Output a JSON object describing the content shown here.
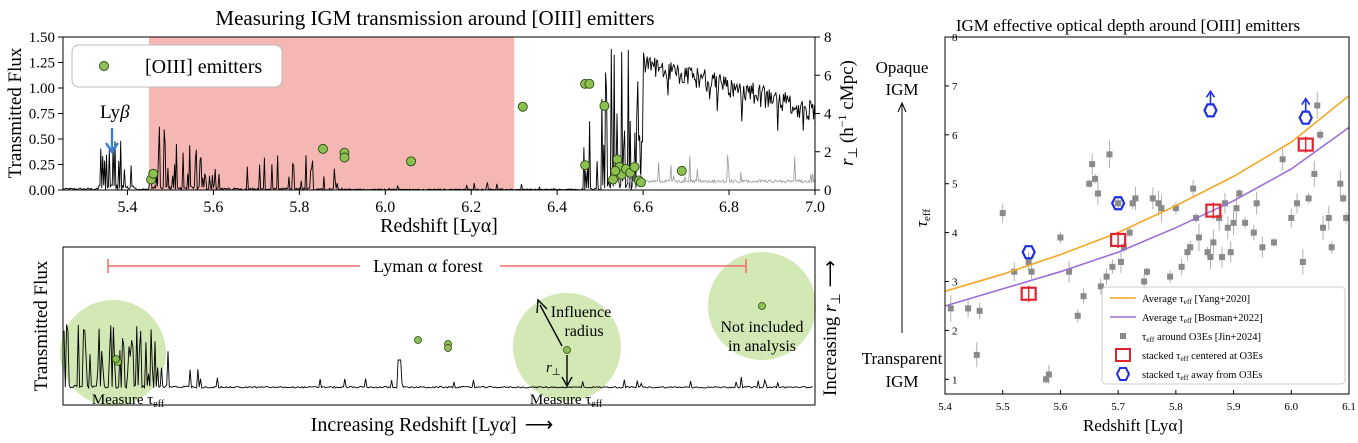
{
  "chart_data": [
    {
      "type": "line",
      "title": "Measuring IGM transmission around [OIII] emitters",
      "xlabel": "Redshift [Lyα]",
      "ylabel": "Transmitted Flux",
      "ylabel_right": "r_⊥ (h⁻¹ cMpc)",
      "ylabel_right_base": "r",
      "ylabel_right_sub": "⊥",
      "ylabel_right_unit_pre": "(h",
      "ylabel_right_unit_exp": "−1",
      "ylabel_right_unit_post": " cMpc)",
      "xlim": [
        5.25,
        7.0
      ],
      "ylim": [
        0,
        1.5
      ],
      "ylim_right": [
        0,
        8
      ],
      "xticks": [
        "5.4",
        "5.6",
        "5.8",
        "6.0",
        "6.2",
        "6.4",
        "6.6",
        "6.8",
        "7.0"
      ],
      "yticks": [
        "0.00",
        "0.25",
        "0.50",
        "0.75",
        "1.00",
        "1.25",
        "1.50"
      ],
      "yticks_right": [
        "0",
        "2",
        "4",
        "6",
        "8"
      ],
      "shaded_region": [
        5.45,
        6.3
      ],
      "shaded_color": "#f4b7b3",
      "legend": "[OIII] emitters",
      "legend_position": "upper-left",
      "lyb_label": "Lyβ",
      "lyb_label_base": "Ly",
      "lyb_label_greek": "β",
      "lyb_redshift": 5.36,
      "lyb_color": "#3a7fd0",
      "emitter_color": "#8cc152",
      "emitters": [
        {
          "x": 5.455,
          "r": 0.55
        },
        {
          "x": 5.46,
          "r": 0.85
        },
        {
          "x": 5.855,
          "r": 2.15
        },
        {
          "x": 5.905,
          "r": 1.95
        },
        {
          "x": 5.905,
          "r": 1.7
        },
        {
          "x": 6.06,
          "r": 1.5
        },
        {
          "x": 6.32,
          "r": 4.35
        },
        {
          "x": 6.465,
          "r": 5.55
        },
        {
          "x": 6.475,
          "r": 5.55
        },
        {
          "x": 6.465,
          "r": 1.3
        },
        {
          "x": 6.51,
          "r": 4.4
        },
        {
          "x": 6.53,
          "r": 0.55
        },
        {
          "x": 6.54,
          "r": 1.6
        },
        {
          "x": 6.545,
          "r": 1.2
        },
        {
          "x": 6.55,
          "r": 0.8
        },
        {
          "x": 6.535,
          "r": 1.0
        },
        {
          "x": 6.56,
          "r": 1.1
        },
        {
          "x": 6.57,
          "r": 0.9
        },
        {
          "x": 6.58,
          "r": 1.2
        },
        {
          "x": 6.59,
          "r": 0.5
        },
        {
          "x": 6.595,
          "r": 0.4
        },
        {
          "x": 6.69,
          "r": 1.0
        }
      ]
    },
    {
      "type": "line",
      "xlabel": "Increasing Redshift [Lyα]",
      "xlabel_base": "Increasing Redshift [Ly",
      "xlabel_greek": "α",
      "xlabel_close": "]",
      "xlabel_arrow": "⟶",
      "ylabel": "Transmitted Flux",
      "ylabel_right": "Increasing r_⊥",
      "ylabel_right_base": "Increasing ",
      "ylabel_right_r": "r",
      "ylabel_right_sub": "⊥",
      "ylabel_right_arrow": "⟶",
      "forest_label": "Lyman α forest",
      "forest_color": "#ef6f68",
      "annotations": {
        "measure": "Measure τ",
        "measure_base": "Measure τ",
        "measure_sub": "eff",
        "influence_1": "Influence",
        "influence_2": "radius",
        "rperp": "r",
        "rperp_sub": "⊥",
        "not_included_1": "Not included",
        "not_included_2": "in analysis"
      },
      "circle_color": "#cde5ad",
      "emitter_color": "#8cc152"
    },
    {
      "type": "scatter",
      "title": "IGM effective optical depth around [OIII] emitters",
      "xlabel": "Redshift [Lyα]",
      "ylabel": "τ_eff",
      "ylabel_base": "τ",
      "ylabel_sub": "eff",
      "xlim": [
        5.4,
        6.1
      ],
      "ylim": [
        0.7,
        8
      ],
      "xticks": [
        "5.4",
        "5.5",
        "5.6",
        "5.7",
        "5.8",
        "5.9",
        "6.0",
        "6.1"
      ],
      "yticks": [
        "1",
        "2",
        "3",
        "4",
        "5",
        "6",
        "7",
        "8"
      ],
      "side_labels": {
        "top_1": "Opaque",
        "top_2": "IGM",
        "bottom_1": "Transparent",
        "bottom_2": "IGM"
      },
      "legend_position": "lower-right",
      "legend": [
        {
          "label": "Average τ_eff [Yang+2020]",
          "base": "Average τ",
          "sub": "eff",
          "tail": " [Yang+2020]",
          "color": "#f5a623",
          "kind": "line"
        },
        {
          "label": "Average τ_eff [Bosman+2022]",
          "base": "Average τ",
          "sub": "eff",
          "tail": " [Bosman+2022]",
          "color": "#9b6fd6",
          "kind": "line"
        },
        {
          "label": "τ_eff around O3Es [Jin+2024]",
          "base": "τ",
          "sub": "eff",
          "tail": " around O3Es [Jin+2024]",
          "color": "#8a8a8a",
          "kind": "square"
        },
        {
          "label": "stacked τ_eff centered at O3Es",
          "base": "stacked τ",
          "sub": "eff",
          "tail": " centered at O3Es",
          "color": "#e0242f",
          "kind": "open-square"
        },
        {
          "label": "stacked τ_eff away from O3Es",
          "base": "stacked τ",
          "sub": "eff",
          "tail": " away from O3Es",
          "color": "#1f2fe0",
          "kind": "open-hexagon"
        }
      ],
      "series": [
        {
          "name": "Average τ_eff [Yang+2020]",
          "color": "#f5a623",
          "x": [
            5.4,
            5.5,
            5.6,
            5.7,
            5.8,
            5.9,
            6.0,
            6.1
          ],
          "y": [
            2.8,
            3.15,
            3.55,
            4.0,
            4.55,
            5.15,
            5.85,
            6.8
          ]
        },
        {
          "name": "Average τ_eff [Bosman+2022]",
          "color": "#9b6fd6",
          "x": [
            5.4,
            5.5,
            5.6,
            5.7,
            5.8,
            5.9,
            6.0,
            6.1
          ],
          "y": [
            2.5,
            2.85,
            3.2,
            3.6,
            4.1,
            4.65,
            5.3,
            6.15
          ]
        },
        {
          "name": "τ_eff around O3Es [Jin+2024]",
          "color": "#8a8a8a",
          "points": [
            [
              5.41,
              2.45
            ],
            [
              5.44,
              2.45
            ],
            [
              5.455,
              1.5
            ],
            [
              5.46,
              2.4
            ],
            [
              5.5,
              4.4
            ],
            [
              5.52,
              3.2
            ],
            [
              5.545,
              3.4
            ],
            [
              5.55,
              3.2
            ],
            [
              5.575,
              1.0
            ],
            [
              5.58,
              1.1
            ],
            [
              5.6,
              3.9
            ],
            [
              5.615,
              3.2
            ],
            [
              5.63,
              2.3
            ],
            [
              5.64,
              2.7
            ],
            [
              5.65,
              5.0
            ],
            [
              5.655,
              5.4
            ],
            [
              5.66,
              5.1
            ],
            [
              5.665,
              4.8
            ],
            [
              5.67,
              2.9
            ],
            [
              5.68,
              3.1
            ],
            [
              5.685,
              5.6
            ],
            [
              5.69,
              3.3
            ],
            [
              5.7,
              4.6
            ],
            [
              5.705,
              3.4
            ],
            [
              5.71,
              3.7
            ],
            [
              5.72,
              4.0
            ],
            [
              5.725,
              4.6
            ],
            [
              5.73,
              4.7
            ],
            [
              5.745,
              3.0
            ],
            [
              5.75,
              3.2
            ],
            [
              5.76,
              4.7
            ],
            [
              5.77,
              4.6
            ],
            [
              5.775,
              4.5
            ],
            [
              5.78,
              2.6
            ],
            [
              5.79,
              3.1
            ],
            [
              5.8,
              4.5
            ],
            [
              5.81,
              3.3
            ],
            [
              5.82,
              3.6
            ],
            [
              5.825,
              3.7
            ],
            [
              5.83,
              4.9
            ],
            [
              5.835,
              4.3
            ],
            [
              5.84,
              3.9
            ],
            [
              5.855,
              3.6
            ],
            [
              5.86,
              3.5
            ],
            [
              5.865,
              3.8
            ],
            [
              5.875,
              4.3
            ],
            [
              5.88,
              3.5
            ],
            [
              5.885,
              4.6
            ],
            [
              5.89,
              4.1
            ],
            [
              5.895,
              3.6
            ],
            [
              5.9,
              4.2
            ],
            [
              5.905,
              4.5
            ],
            [
              5.91,
              4.8
            ],
            [
              5.92,
              4.2
            ],
            [
              5.935,
              4.0
            ],
            [
              5.94,
              4.6
            ],
            [
              5.95,
              3.7
            ],
            [
              5.97,
              3.8
            ],
            [
              5.985,
              5.5
            ],
            [
              6.0,
              4.3
            ],
            [
              6.01,
              4.6
            ],
            [
              6.02,
              3.4
            ],
            [
              6.03,
              4.7
            ],
            [
              6.04,
              5.2
            ],
            [
              6.045,
              6.6
            ],
            [
              6.05,
              6.0
            ],
            [
              6.055,
              4.1
            ],
            [
              6.065,
              4.3
            ],
            [
              6.07,
              3.7
            ],
            [
              6.085,
              5.0
            ],
            [
              6.09,
              4.7
            ],
            [
              6.095,
              4.3
            ]
          ]
        },
        {
          "name": "stacked τ_eff centered at O3Es",
          "color": "#e0242f",
          "points": [
            [
              5.545,
              2.75
            ],
            [
              5.7,
              3.85
            ],
            [
              5.865,
              4.45
            ],
            [
              6.025,
              5.8
            ]
          ]
        },
        {
          "name": "stacked τ_eff away from O3Es",
          "color": "#1f2fe0",
          "points": [
            [
              5.545,
              3.6
            ],
            [
              5.7,
              4.6
            ],
            [
              5.86,
              6.5
            ],
            [
              6.025,
              6.35
            ]
          ]
        }
      ]
    }
  ]
}
